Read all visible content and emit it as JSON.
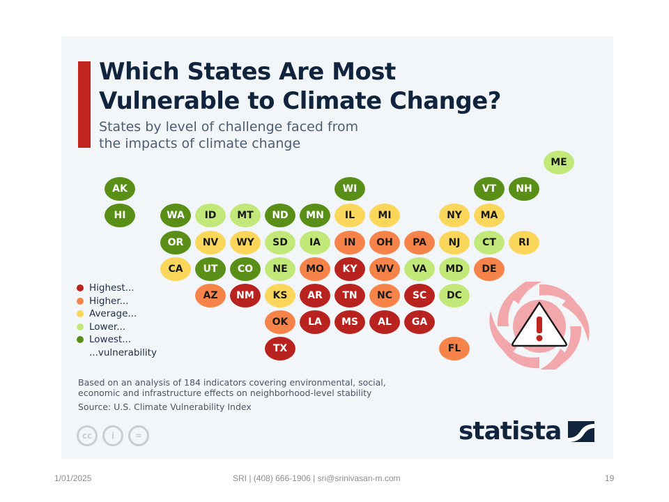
{
  "slide": {
    "footer_date": "1/01/2025",
    "footer_center": "SRI | (408) 666-1906 | sri@srinivasan-m.com",
    "page_number": "19"
  },
  "infographic": {
    "title": "Which States Are Most\nVulnerable to Climate Change?",
    "subtitle": "States by level of challenge faced from\nthe impacts of climate change",
    "note": "Based on an analysis of 184 indicators covering environmental, social,\neconomic and infrastructure effects on neighborhood-level stability",
    "source": "Source: U.S. Climate Vulnerability Index",
    "brand": "statista",
    "license_icons": [
      "cc-icon",
      "attribution-icon",
      "no-derivatives-icon"
    ],
    "license_glyphs": [
      "cc",
      "i",
      "="
    ],
    "hazard_icon": "hurricane-warning-icon",
    "accent_color": "#c0241f",
    "title_color": "#10243e"
  },
  "chart_data": {
    "type": "heatmap",
    "title": "Which States Are Most Vulnerable to Climate Change?",
    "subtitle": "States by level of challenge faced from the impacts of climate change",
    "legend_position": "left",
    "legend": [
      {
        "key": "highest",
        "label": "Highest...",
        "color": "#b8231f",
        "text_color": "#ffffff"
      },
      {
        "key": "higher",
        "label": "Higher...",
        "color": "#f5834a",
        "text_color": "#1a1a1a"
      },
      {
        "key": "average",
        "label": "Average...",
        "color": "#fad65a",
        "text_color": "#1a1a1a"
      },
      {
        "key": "lower",
        "label": "Lower...",
        "color": "#c3e87a",
        "text_color": "#1a1a1a"
      },
      {
        "key": "lowest",
        "label": "Lowest...",
        "color": "#5a8f17",
        "text_color": "#ffffff"
      }
    ],
    "legend_suffix": "...vulnerability",
    "states": [
      {
        "state": "ME",
        "level": "lower",
        "row": 0,
        "col": 11
      },
      {
        "state": "AK",
        "level": "lowest",
        "row": 1,
        "col": -1
      },
      {
        "state": "WI",
        "level": "lowest",
        "row": 1,
        "col": 5
      },
      {
        "state": "VT",
        "level": "lowest",
        "row": 1,
        "col": 9
      },
      {
        "state": "NH",
        "level": "lowest",
        "row": 1,
        "col": 10
      },
      {
        "state": "HI",
        "level": "lowest",
        "row": 2,
        "col": -1
      },
      {
        "state": "WA",
        "level": "lowest",
        "row": 2,
        "col": 0
      },
      {
        "state": "ID",
        "level": "lower",
        "row": 2,
        "col": 1
      },
      {
        "state": "MT",
        "level": "lower",
        "row": 2,
        "col": 2
      },
      {
        "state": "ND",
        "level": "lowest",
        "row": 2,
        "col": 3
      },
      {
        "state": "MN",
        "level": "lowest",
        "row": 2,
        "col": 4
      },
      {
        "state": "IL",
        "level": "average",
        "row": 2,
        "col": 5
      },
      {
        "state": "MI",
        "level": "average",
        "row": 2,
        "col": 6
      },
      {
        "state": "NY",
        "level": "average",
        "row": 2,
        "col": 8
      },
      {
        "state": "MA",
        "level": "average",
        "row": 2,
        "col": 9
      },
      {
        "state": "OR",
        "level": "lowest",
        "row": 3,
        "col": 0
      },
      {
        "state": "NV",
        "level": "average",
        "row": 3,
        "col": 1
      },
      {
        "state": "WY",
        "level": "average",
        "row": 3,
        "col": 2
      },
      {
        "state": "SD",
        "level": "lower",
        "row": 3,
        "col": 3
      },
      {
        "state": "IA",
        "level": "lower",
        "row": 3,
        "col": 4
      },
      {
        "state": "IN",
        "level": "higher",
        "row": 3,
        "col": 5
      },
      {
        "state": "OH",
        "level": "higher",
        "row": 3,
        "col": 6
      },
      {
        "state": "PA",
        "level": "higher",
        "row": 3,
        "col": 7
      },
      {
        "state": "NJ",
        "level": "average",
        "row": 3,
        "col": 8
      },
      {
        "state": "CT",
        "level": "lower",
        "row": 3,
        "col": 9
      },
      {
        "state": "RI",
        "level": "average",
        "row": 3,
        "col": 10
      },
      {
        "state": "CA",
        "level": "average",
        "row": 4,
        "col": 0
      },
      {
        "state": "UT",
        "level": "lowest",
        "row": 4,
        "col": 1
      },
      {
        "state": "CO",
        "level": "lowest",
        "row": 4,
        "col": 2
      },
      {
        "state": "NE",
        "level": "lower",
        "row": 4,
        "col": 3
      },
      {
        "state": "MO",
        "level": "higher",
        "row": 4,
        "col": 4
      },
      {
        "state": "KY",
        "level": "highest",
        "row": 4,
        "col": 5
      },
      {
        "state": "WV",
        "level": "higher",
        "row": 4,
        "col": 6
      },
      {
        "state": "VA",
        "level": "lower",
        "row": 4,
        "col": 7
      },
      {
        "state": "MD",
        "level": "lower",
        "row": 4,
        "col": 8
      },
      {
        "state": "DE",
        "level": "higher",
        "row": 4,
        "col": 9
      },
      {
        "state": "AZ",
        "level": "higher",
        "row": 5,
        "col": 1
      },
      {
        "state": "NM",
        "level": "highest",
        "row": 5,
        "col": 2
      },
      {
        "state": "KS",
        "level": "average",
        "row": 5,
        "col": 3
      },
      {
        "state": "AR",
        "level": "highest",
        "row": 5,
        "col": 4
      },
      {
        "state": "TN",
        "level": "highest",
        "row": 5,
        "col": 5
      },
      {
        "state": "NC",
        "level": "higher",
        "row": 5,
        "col": 6
      },
      {
        "state": "SC",
        "level": "highest",
        "row": 5,
        "col": 7
      },
      {
        "state": "DC",
        "level": "lower",
        "row": 5,
        "col": 8
      },
      {
        "state": "OK",
        "level": "higher",
        "row": 6,
        "col": 3
      },
      {
        "state": "LA",
        "level": "highest",
        "row": 6,
        "col": 4
      },
      {
        "state": "MS",
        "level": "highest",
        "row": 6,
        "col": 5
      },
      {
        "state": "AL",
        "level": "highest",
        "row": 6,
        "col": 6
      },
      {
        "state": "GA",
        "level": "highest",
        "row": 6,
        "col": 7
      },
      {
        "state": "TX",
        "level": "highest",
        "row": 7,
        "col": 3
      },
      {
        "state": "FL",
        "level": "higher",
        "row": 7,
        "col": 8
      }
    ]
  }
}
